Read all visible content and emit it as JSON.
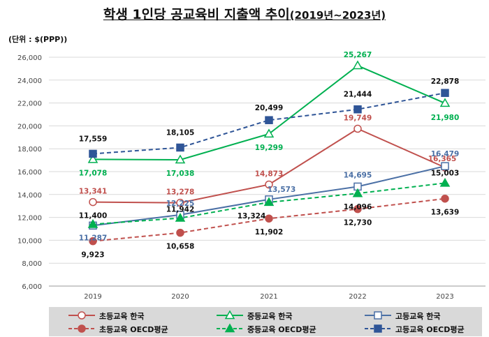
{
  "title": {
    "main": "학생 1인당 공교육비 지출액 추이",
    "years": "(2019년~2023년)"
  },
  "unit_label": "(단위 : $(PPP))",
  "chart_data": {
    "type": "line",
    "x": [
      "2019",
      "2020",
      "2021",
      "2022",
      "2023"
    ],
    "ylim": [
      6000,
      26000
    ],
    "yticks": [
      "6,000",
      "8,000",
      "10,000",
      "12,000",
      "14,000",
      "16,000",
      "18,000",
      "20,000",
      "22,000",
      "24,000",
      "26,000"
    ],
    "grid": true,
    "legend_position": "bottom",
    "series": [
      {
        "name": "초등교육 한국",
        "color": "#c0504d",
        "dashed": false,
        "marker": "circle-open",
        "values": [
          13341,
          13278,
          14873,
          19749,
          16365
        ],
        "labels": [
          "13,341",
          "13,278",
          "14,873",
          "19,749",
          "16,365"
        ]
      },
      {
        "name": "중등교육 한국",
        "color": "#00b050",
        "dashed": false,
        "marker": "triangle-open",
        "values": [
          17078,
          17038,
          19299,
          25267,
          21980
        ],
        "labels": [
          "17,078",
          "17,038",
          "19,299",
          "25,267",
          "21,980"
        ]
      },
      {
        "name": "고등교육 한국",
        "color": "#4a6fa5",
        "dashed": false,
        "marker": "square-open",
        "values": [
          11287,
          12225,
          13573,
          14695,
          16479
        ],
        "labels": [
          "11,287",
          "12,225",
          "13,573",
          "14,695",
          "16,479"
        ]
      },
      {
        "name": "초등교육 OECD평균",
        "color": "#c0504d",
        "dashed": true,
        "marker": "circle-filled",
        "values": [
          9923,
          10658,
          11902,
          12730,
          13639
        ],
        "labels": [
          "9,923",
          "10,658",
          "11,902",
          "12,730",
          "13,639"
        ]
      },
      {
        "name": "중등교육 OECD평균",
        "color": "#00b050",
        "dashed": true,
        "marker": "triangle-filled",
        "values": [
          11400,
          11942,
          13324,
          14096,
          15003
        ],
        "labels": [
          "11,400",
          "11,942",
          "13,324",
          "14,096",
          "15,003"
        ]
      },
      {
        "name": "고등교육 OECD평균",
        "color": "#2f5597",
        "dashed": true,
        "marker": "square-filled",
        "values": [
          17559,
          18105,
          20499,
          21444,
          22878
        ],
        "labels": [
          "17,559",
          "18,105",
          "20,499",
          "21,444",
          "22,878"
        ]
      }
    ]
  }
}
